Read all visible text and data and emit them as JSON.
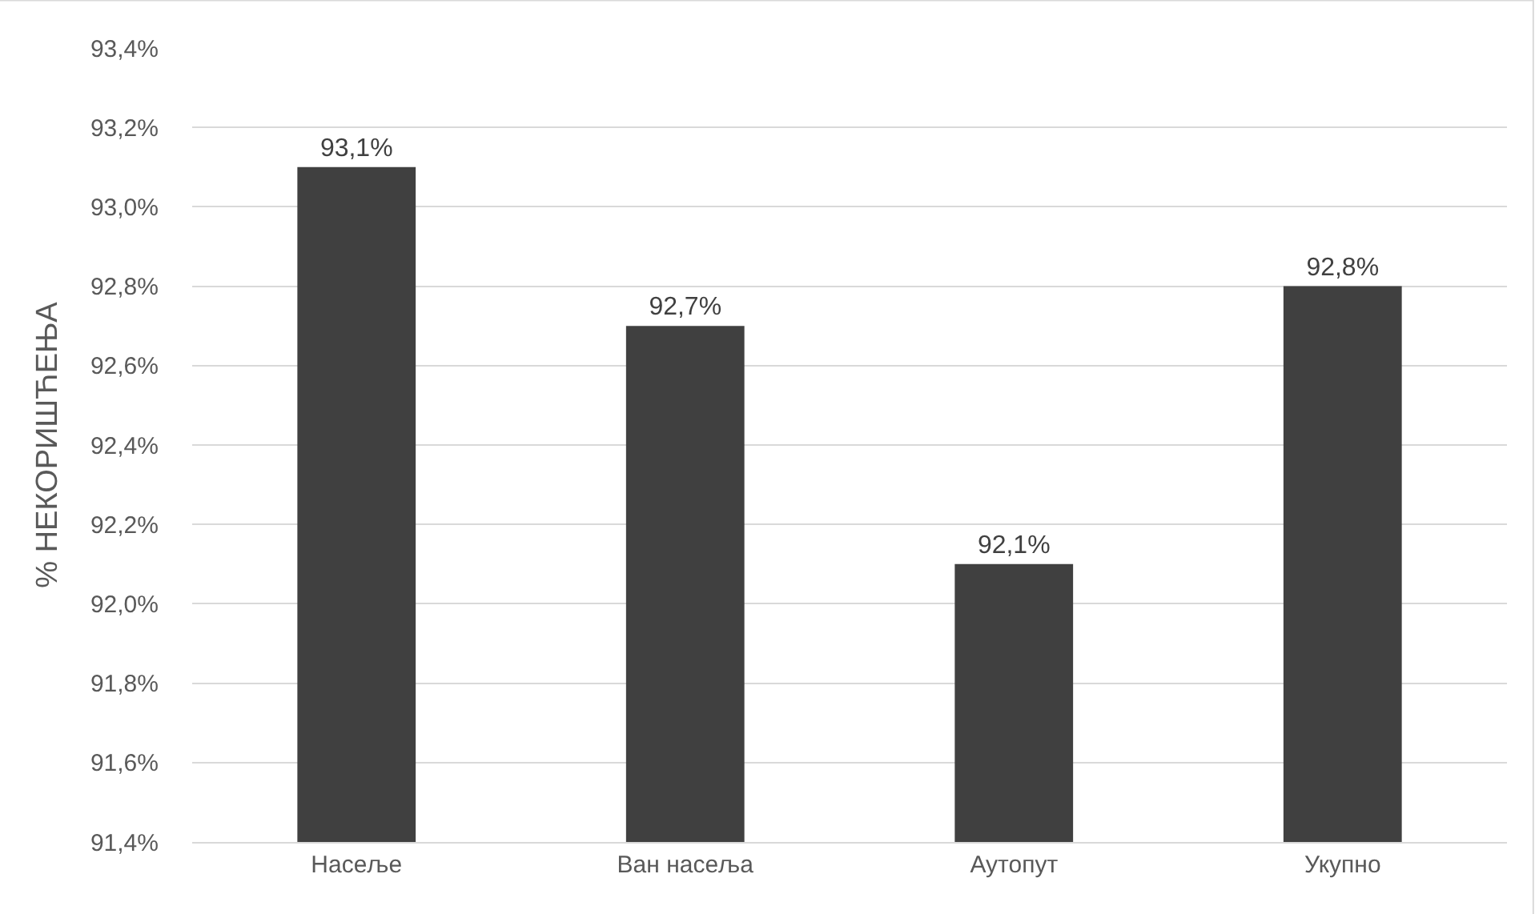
{
  "chart_data": {
    "type": "bar",
    "ylabel": "% НЕКОРИШЋЕЊА",
    "categories": [
      "Насеље",
      "Ван насеља",
      "Аутопут",
      "Укупно"
    ],
    "values": [
      93.1,
      92.7,
      92.1,
      92.8
    ],
    "value_labels": [
      "93,1%",
      "92,7%",
      "92,1%",
      "92,8%"
    ],
    "color": "#404040",
    "ylim": [
      91.4,
      93.4
    ],
    "yticks": [
      {
        "value": 91.4,
        "label": "91,4%"
      },
      {
        "value": 91.6,
        "label": "91,6%"
      },
      {
        "value": 91.8,
        "label": "91,8%"
      },
      {
        "value": 92.0,
        "label": "92,0%"
      },
      {
        "value": 92.2,
        "label": "92,2%"
      },
      {
        "value": 92.4,
        "label": "92,4%"
      },
      {
        "value": 92.6,
        "label": "92,6%"
      },
      {
        "value": 92.8,
        "label": "92,8%"
      },
      {
        "value": 93.0,
        "label": "93,0%"
      },
      {
        "value": 93.2,
        "label": "93,2%"
      },
      {
        "value": 93.4,
        "label": "93,4%"
      }
    ],
    "grid": "y"
  }
}
